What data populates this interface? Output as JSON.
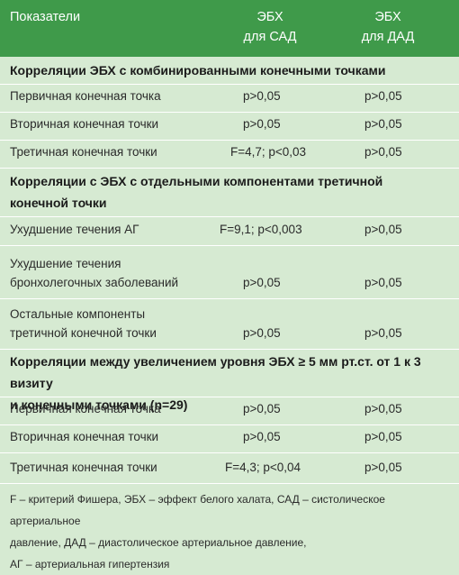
{
  "table": {
    "headers": {
      "indicator": "Показатели",
      "sbp_line1": "ЭБХ",
      "sbp_line2": "для САД",
      "dbp_line1": "ЭБХ",
      "dbp_line2": "для ДАД"
    },
    "sections": [
      {
        "title": "Корреляции ЭБХ с комбинированными конечными точками",
        "rows": [
          {
            "label": "Первичная конечная точка",
            "sbp": "p>0,05",
            "dbp": "p>0,05"
          },
          {
            "label": "Вторичная конечная точки",
            "sbp": "p>0,05",
            "dbp": "p>0,05"
          },
          {
            "label": "Третичная конечная точки",
            "sbp": "F=4,7; p<0,03",
            "dbp": "p>0,05"
          }
        ]
      },
      {
        "title_line1": "Корреляции с ЭБХ с отдельными компонентами третичной",
        "title_line2": "конечной точки",
        "rows": [
          {
            "label": "Ухудшение течения АГ",
            "sbp": "F=9,1; p<0,003",
            "dbp": "p>0,05"
          },
          {
            "label_line1": "Ухудшение течения",
            "label_line2": "бронхолегочных заболеваний",
            "sbp": "p>0,05",
            "dbp": "p>0,05"
          },
          {
            "label_line1": "Остальные компоненты",
            "label_line2": "третичной конечной точки",
            "sbp": "p>0,05",
            "dbp": "p>0,05"
          }
        ]
      },
      {
        "title_line1": "Корреляции между увеличением уровня ЭБХ ≥ 5 мм рт.ст. от 1 к 3 визиту",
        "title_line2": "и конечными точками (n=29)",
        "rows": [
          {
            "label": "Первичная конечная точка",
            "sbp": "p>0,05",
            "dbp": "p>0,05"
          },
          {
            "label": "Вторичная конечная точки",
            "sbp": "p>0,05",
            "dbp": "p>0,05"
          },
          {
            "label": "Третичная конечная точки",
            "sbp": "F=4,3; p<0,04",
            "dbp": "p>0,05"
          }
        ]
      }
    ]
  },
  "footnote": {
    "line1": "F – критерий Фишера, ЭБХ – эффект белого халата, САД – систолическое артериальное",
    "line2": "давление, ДАД – диастолическое артериальное давление,",
    "line3": "АГ – артериальная гипертензия"
  },
  "colors": {
    "header_bg": "#3f9a4a",
    "body_bg": "#d6ead2",
    "header_text": "#ffffff"
  }
}
